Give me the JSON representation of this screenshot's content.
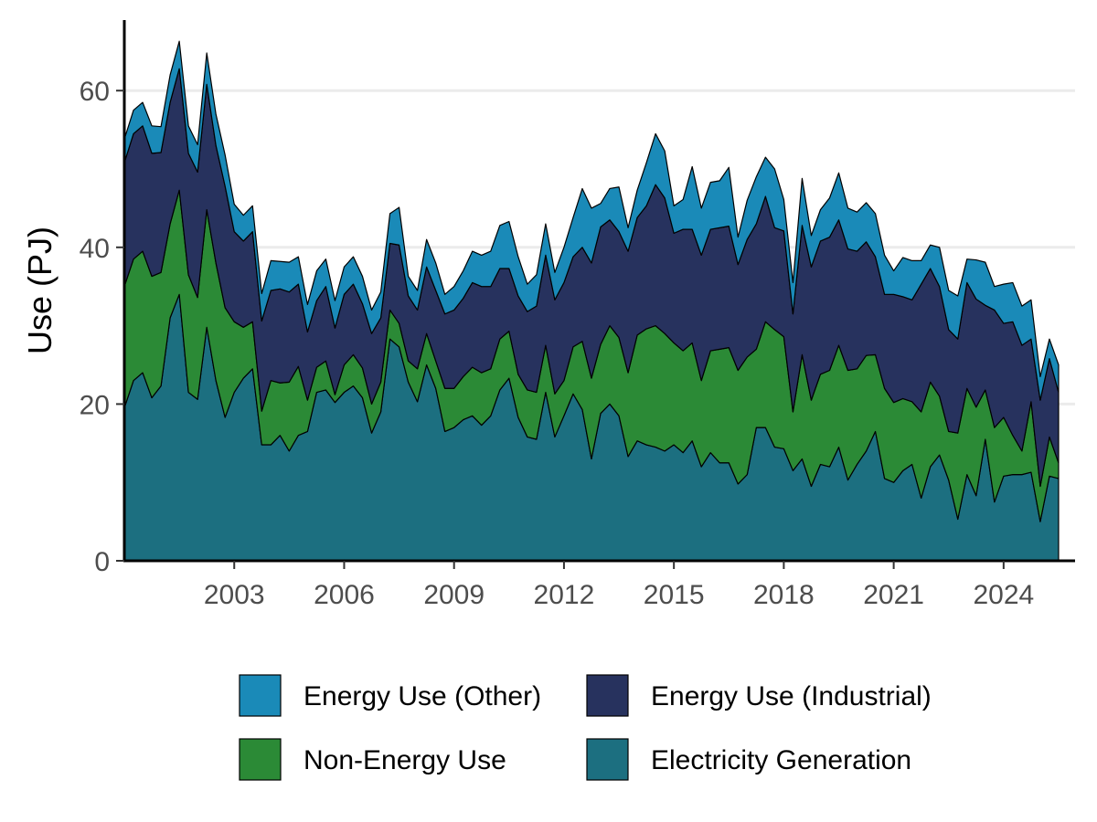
{
  "chart_data": {
    "type": "area",
    "stacked": true,
    "title": "",
    "xlabel": "",
    "ylabel": "Use (PJ)",
    "xlim": [
      2000.0,
      2025.95
    ],
    "ylim": [
      0,
      69
    ],
    "y_ticks": [
      0,
      20,
      40,
      60
    ],
    "x_ticks": [
      2003,
      2006,
      2009,
      2012,
      2015,
      2018,
      2021,
      2024
    ],
    "grid": "horizontal major",
    "legend_position": "bottom",
    "x_start": 2000.0,
    "x_step": 0.25,
    "series": [
      {
        "name": "Electricity Generation",
        "color": "#1c6f80",
        "values": [
          19.5,
          23.0,
          24.0,
          20.8,
          22.3,
          31.0,
          34.0,
          21.5,
          20.6,
          29.8,
          23.0,
          18.3,
          21.5,
          23.3,
          24.5,
          14.8,
          14.8,
          16.0,
          14.0,
          16.0,
          16.5,
          21.5,
          21.8,
          20.2,
          21.5,
          22.3,
          20.8,
          16.3,
          19.0,
          28.3,
          27.3,
          22.8,
          20.3,
          25.0,
          22.0,
          16.5,
          17.0,
          18.0,
          18.5,
          17.3,
          18.5,
          21.8,
          23.3,
          18.3,
          15.8,
          15.5,
          21.5,
          15.8,
          18.5,
          21.3,
          19.3,
          13.0,
          18.8,
          20.0,
          18.5,
          13.3,
          15.3,
          14.8,
          14.5,
          14.0,
          14.8,
          13.8,
          15.3,
          12.0,
          13.8,
          12.5,
          12.5,
          9.8,
          11.0,
          17.0,
          17.0,
          14.5,
          14.3,
          11.5,
          13.0,
          9.5,
          12.3,
          12.0,
          14.5,
          10.3,
          12.3,
          14.0,
          16.5,
          10.5,
          10.0,
          11.5,
          12.3,
          8.0,
          12.0,
          13.5,
          10.3,
          5.3,
          11.0,
          8.3,
          15.5,
          7.5,
          10.8,
          11.0,
          11.0,
          11.3,
          5.0,
          10.8,
          10.5
        ]
      },
      {
        "name": "Non-Energy Use",
        "color": "#2b8a36",
        "values": [
          15.5,
          15.5,
          15.5,
          15.5,
          14.5,
          12.0,
          13.3,
          15.0,
          13.0,
          15.0,
          15.0,
          14.0,
          9.0,
          6.5,
          6.0,
          4.3,
          8.2,
          6.7,
          8.8,
          8.8,
          4.0,
          3.2,
          3.7,
          1.0,
          3.5,
          4.0,
          3.8,
          3.7,
          3.8,
          3.7,
          3.0,
          2.7,
          4.2,
          4.0,
          3.5,
          5.5,
          5.0,
          5.5,
          6.2,
          6.7,
          6.0,
          6.5,
          6.0,
          5.5,
          6.0,
          6.0,
          6.0,
          5.5,
          4.5,
          6.0,
          8.7,
          10.3,
          8.8,
          10.0,
          10.0,
          10.7,
          13.5,
          14.8,
          15.5,
          15.0,
          13.0,
          13.0,
          12.5,
          11.0,
          13.0,
          14.5,
          14.7,
          14.5,
          15.0,
          10.0,
          13.5,
          15.0,
          14.3,
          7.5,
          13.3,
          11.0,
          11.5,
          12.3,
          13.0,
          14.0,
          12.2,
          12.2,
          9.8,
          11.5,
          10.2,
          9.2,
          8.0,
          11.0,
          10.8,
          7.5,
          6.2,
          11.0,
          11.0,
          11.3,
          6.3,
          9.5,
          7.5,
          5.0,
          3.0,
          9.0,
          4.5,
          5.0,
          2.0
        ]
      },
      {
        "name": "Energy Use (Industrial)",
        "color": "#27325e",
        "values": [
          15.8,
          16.0,
          16.0,
          15.7,
          15.3,
          15.5,
          15.5,
          15.5,
          16.0,
          16.0,
          15.0,
          15.5,
          11.5,
          11.0,
          11.5,
          11.5,
          11.5,
          12.0,
          11.5,
          10.5,
          8.7,
          8.5,
          9.5,
          8.5,
          9.0,
          9.0,
          8.2,
          9.0,
          8.2,
          8.5,
          10.0,
          8.3,
          7.5,
          8.5,
          9.0,
          9.5,
          10.0,
          10.0,
          10.8,
          11.0,
          10.5,
          9.0,
          8.0,
          10.0,
          10.0,
          11.0,
          11.5,
          12.0,
          12.5,
          11.5,
          12.0,
          14.7,
          15.0,
          13.5,
          13.5,
          15.5,
          15.0,
          15.7,
          18.0,
          17.3,
          14.0,
          15.5,
          14.5,
          16.0,
          15.5,
          15.5,
          15.5,
          13.5,
          15.0,
          16.0,
          16.0,
          13.0,
          13.5,
          12.5,
          16.5,
          17.0,
          17.0,
          17.0,
          16.0,
          15.5,
          15.0,
          14.5,
          12.5,
          12.0,
          13.8,
          13.0,
          13.0,
          16.3,
          14.5,
          14.0,
          13.0,
          12.0,
          13.5,
          13.8,
          10.8,
          15.0,
          12.0,
          14.5,
          13.5,
          8.0,
          11.0,
          10.0,
          9.0
        ]
      },
      {
        "name": "Energy Use (Other)",
        "color": "#1a8ab8",
        "values": [
          3.0,
          3.0,
          3.0,
          3.5,
          3.3,
          3.5,
          3.5,
          3.5,
          3.5,
          4.0,
          4.0,
          4.0,
          3.5,
          3.3,
          3.3,
          3.5,
          3.8,
          3.5,
          3.8,
          3.5,
          3.5,
          3.8,
          3.5,
          3.5,
          3.5,
          3.5,
          3.5,
          3.0,
          3.3,
          3.8,
          4.8,
          2.5,
          2.5,
          3.5,
          3.5,
          2.5,
          3.0,
          3.5,
          4.0,
          4.0,
          4.5,
          5.5,
          6.0,
          5.0,
          3.5,
          4.0,
          4.0,
          3.5,
          4.5,
          5.0,
          7.5,
          7.0,
          3.0,
          4.0,
          5.7,
          3.0,
          3.5,
          5.5,
          6.5,
          6.0,
          3.5,
          3.8,
          8.0,
          6.0,
          6.0,
          6.0,
          7.5,
          3.5,
          5.0,
          6.0,
          5.0,
          7.5,
          4.0,
          4.0,
          6.0,
          4.0,
          4.0,
          5.0,
          6.0,
          5.2,
          5.0,
          5.0,
          5.5,
          5.0,
          3.0,
          5.0,
          5.0,
          3.0,
          3.0,
          5.0,
          5.0,
          5.5,
          3.0,
          5.0,
          5.5,
          3.0,
          5.0,
          5.0,
          5.0,
          5.0,
          3.0,
          2.5,
          3.5
        ]
      }
    ],
    "legend": [
      {
        "label": "Energy Use (Other)",
        "color": "#1a8ab8"
      },
      {
        "label": "Energy Use (Industrial)",
        "color": "#27325e"
      },
      {
        "label": "Non-Energy Use",
        "color": "#2b8a36"
      },
      {
        "label": "Electricity Generation",
        "color": "#1c6f80"
      }
    ]
  }
}
